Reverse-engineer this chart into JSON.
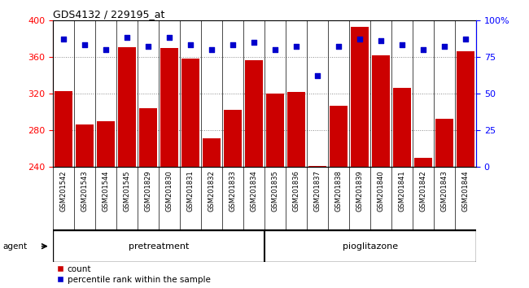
{
  "title": "GDS4132 / 229195_at",
  "categories": [
    "GSM201542",
    "GSM201543",
    "GSM201544",
    "GSM201545",
    "GSM201829",
    "GSM201830",
    "GSM201831",
    "GSM201832",
    "GSM201833",
    "GSM201834",
    "GSM201835",
    "GSM201836",
    "GSM201837",
    "GSM201838",
    "GSM201839",
    "GSM201840",
    "GSM201841",
    "GSM201842",
    "GSM201843",
    "GSM201844"
  ],
  "bar_values": [
    323,
    286,
    290,
    371,
    304,
    370,
    358,
    271,
    302,
    356,
    320,
    322,
    241,
    307,
    393,
    362,
    326,
    250,
    293,
    366
  ],
  "dot_values": [
    87,
    83,
    80,
    88,
    82,
    88,
    83,
    80,
    83,
    85,
    80,
    82,
    62,
    82,
    87,
    86,
    83,
    80,
    82,
    87
  ],
  "bar_color": "#cc0000",
  "dot_color": "#0000cc",
  "ylim_left": [
    240,
    400
  ],
  "ylim_right": [
    0,
    100
  ],
  "yticks_left": [
    240,
    280,
    320,
    360,
    400
  ],
  "yticks_right": [
    0,
    25,
    50,
    75,
    100
  ],
  "ytick_labels_right": [
    "0",
    "25",
    "50",
    "75",
    "100%"
  ],
  "pretreatment_count": 10,
  "pretreatment_label": "pretreatment",
  "pioglitazone_label": "pioglitazone",
  "agent_label": "agent",
  "legend_count_label": "count",
  "legend_percentile_label": "percentile rank within the sample",
  "grid_color": "#888888",
  "bar_width": 0.85,
  "plot_bg_color": "#ffffff",
  "tick_bg_color": "#cccccc",
  "agent_strip_color": "#66ee66",
  "agent_strip_color2": "#99ff99"
}
